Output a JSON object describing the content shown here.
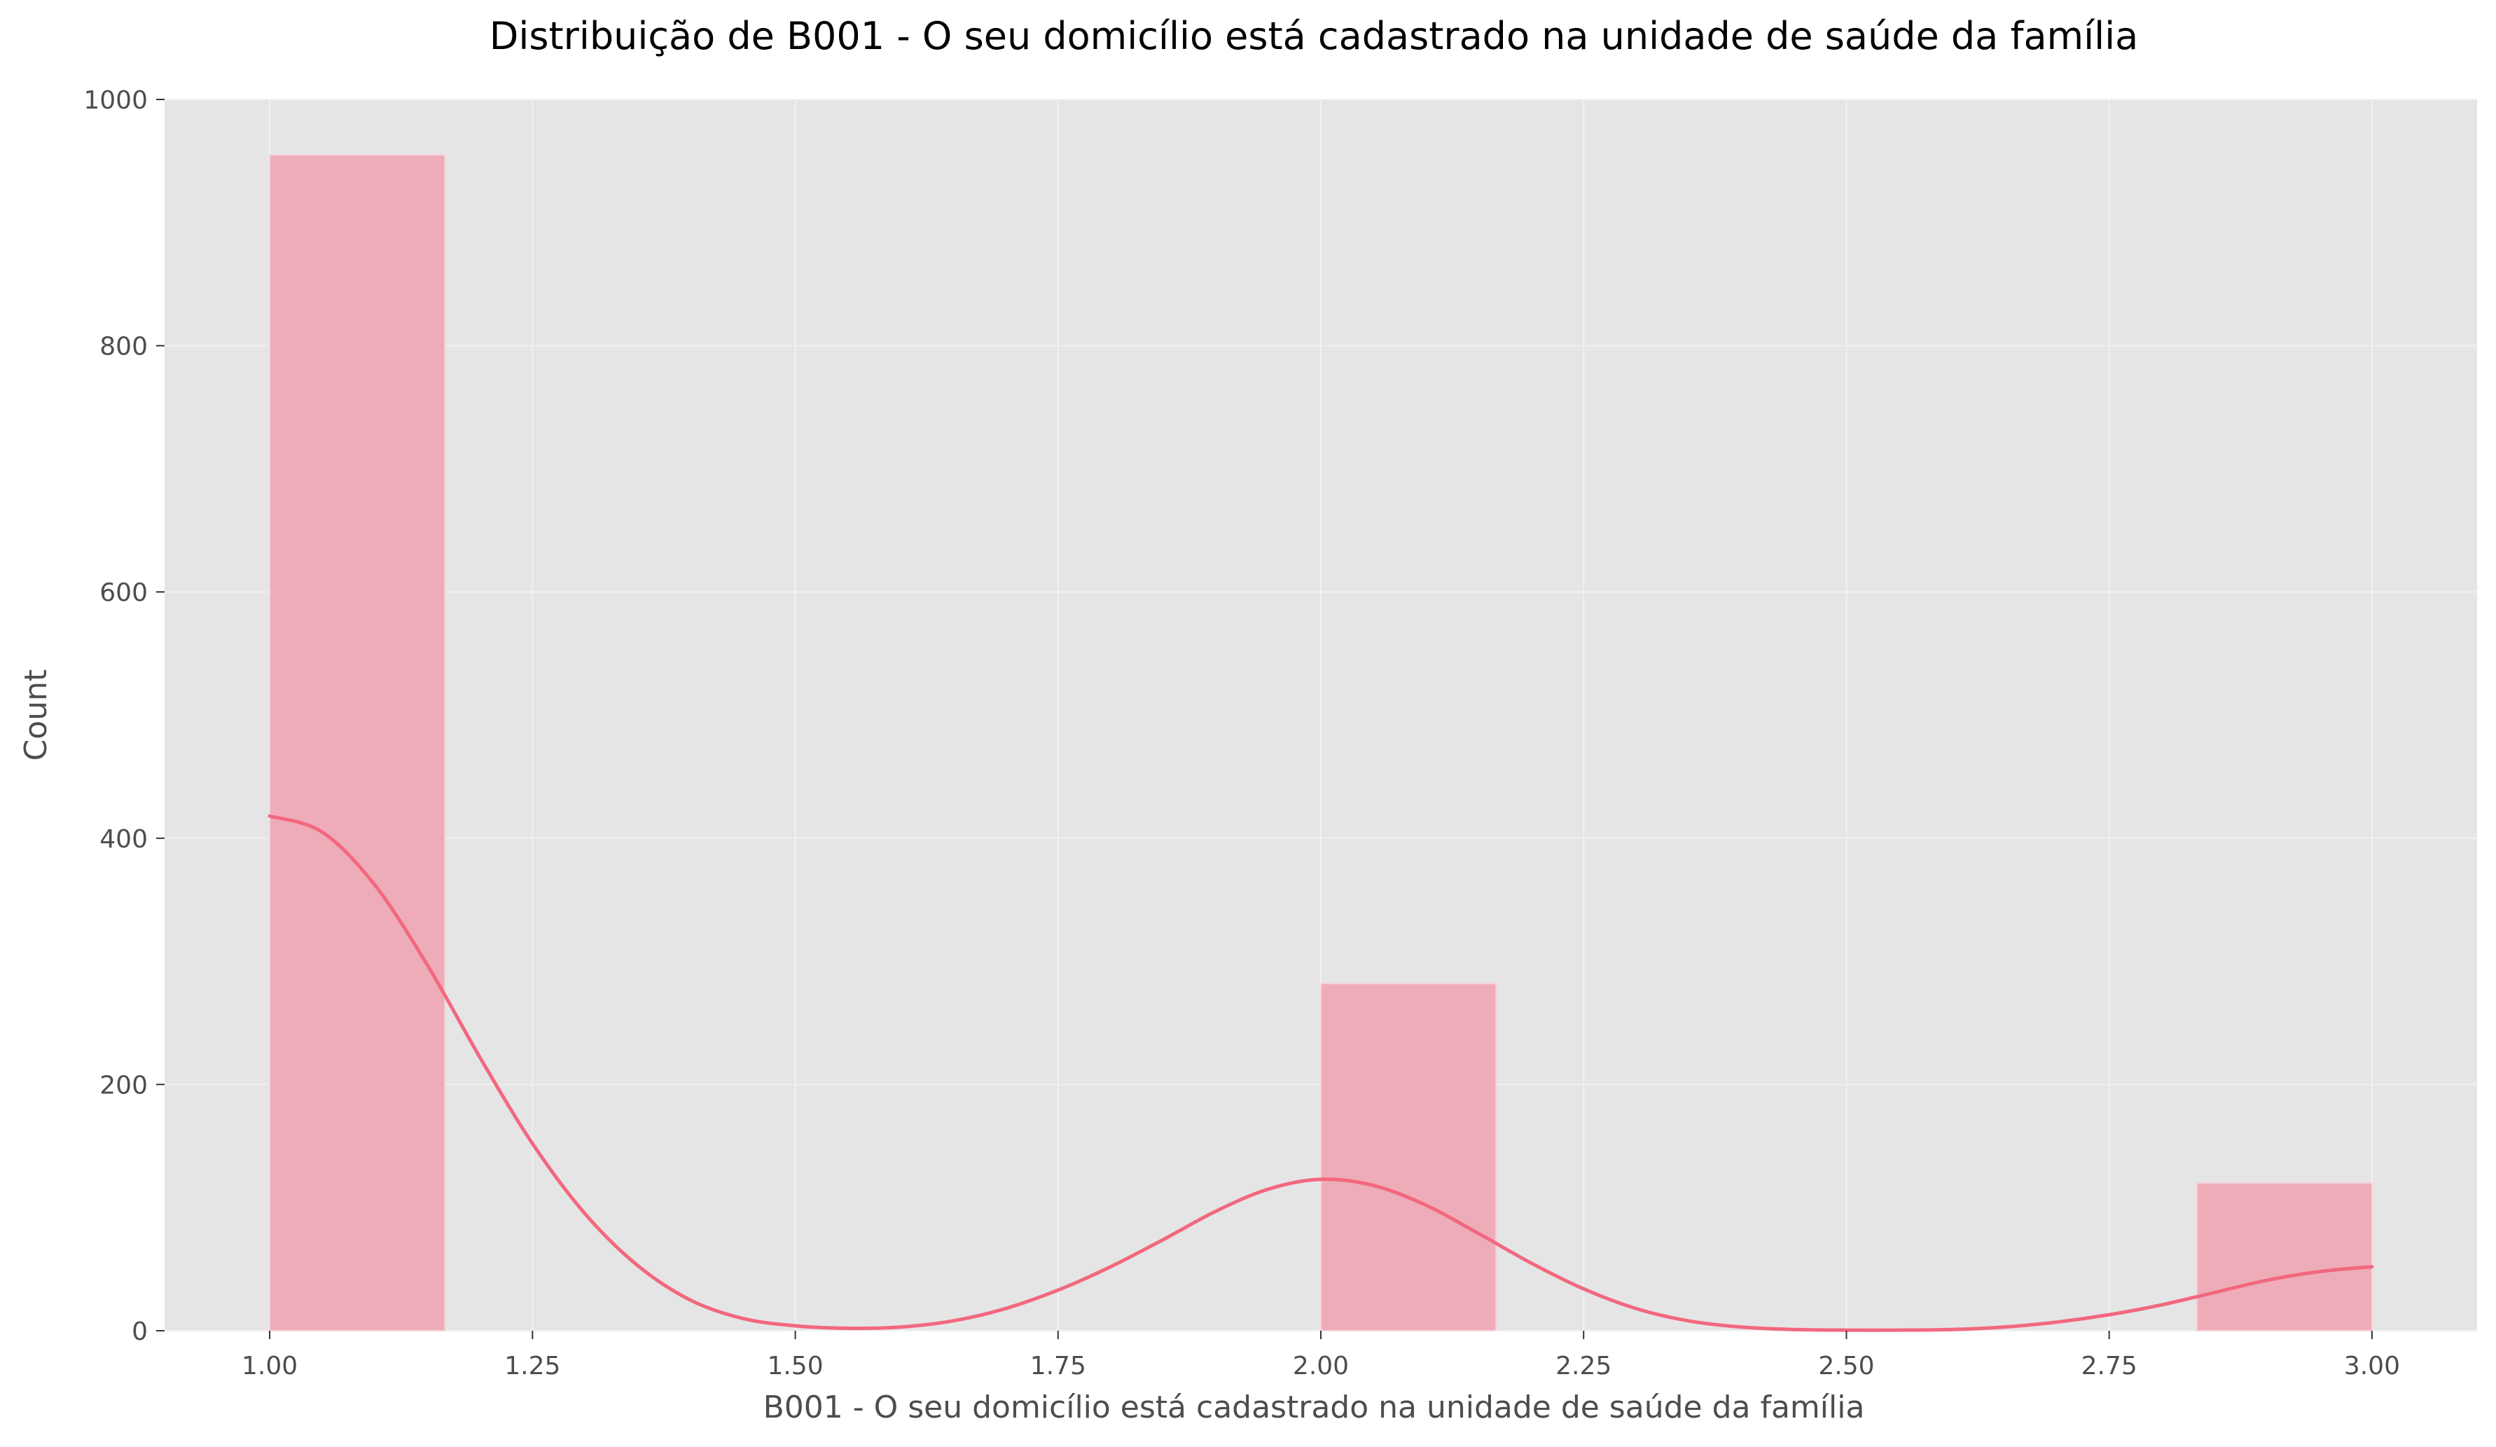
{
  "chart_data": {
    "type": "bar",
    "subtype": "histogram-with-kde",
    "title": "Distribuição de B001 - O seu domicílio está cadastrado na unidade de saúde da família",
    "xlabel": "B001 - O seu domicílio está cadastrado na unidade de saúde da família",
    "ylabel": "Count",
    "xlim": [
      0.9,
      3.1
    ],
    "ylim": [
      0,
      1000
    ],
    "xticks": [
      1.0,
      1.25,
      1.5,
      1.75,
      2.0,
      2.25,
      2.5,
      2.75,
      3.0
    ],
    "xtick_labels": [
      "1.00",
      "1.25",
      "1.50",
      "1.75",
      "2.00",
      "2.25",
      "2.50",
      "2.75",
      "3.00"
    ],
    "yticks": [
      0,
      200,
      400,
      600,
      800,
      1000
    ],
    "ytick_labels": [
      "0",
      "200",
      "400",
      "600",
      "800",
      "1000"
    ],
    "grid": true,
    "bins": [
      {
        "x0": 1.0,
        "x1": 1.1667,
        "count": 955
      },
      {
        "x0": 2.0,
        "x1": 2.1667,
        "count": 282
      },
      {
        "x0": 2.8333,
        "x1": 3.0,
        "count": 120
      }
    ],
    "kde": {
      "x": [
        1.0,
        1.05,
        1.1,
        1.15,
        1.2,
        1.25,
        1.3,
        1.35,
        1.4,
        1.45,
        1.5,
        1.55,
        1.6,
        1.65,
        1.7,
        1.75,
        1.8,
        1.85,
        1.9,
        1.95,
        2.0,
        2.05,
        2.1,
        2.15,
        2.2,
        2.25,
        2.3,
        2.35,
        2.4,
        2.45,
        2.5,
        2.55,
        2.6,
        2.65,
        2.7,
        2.75,
        2.8,
        2.85,
        2.9,
        2.95,
        3.0
      ],
      "y": [
        418,
        405,
        362,
        297,
        222,
        152,
        95,
        53,
        25,
        10,
        4,
        2,
        3,
        8,
        18,
        33,
        52,
        74,
        97,
        115,
        123,
        118,
        102,
        79,
        55,
        34,
        18,
        8,
        3,
        1,
        0.5,
        0.5,
        1,
        3,
        7,
        13,
        21,
        31,
        41,
        48,
        52
      ]
    },
    "colors": {
      "bar_fill": "#eeacb9",
      "bar_stroke": "#f6d4db",
      "kde_line": "#f2687e",
      "plot_bg": "#e5e5e5",
      "grid": "#f1f1f1",
      "tick_text": "#4d4d4d",
      "label_text": "#4d4d4d",
      "title_text": "#000000"
    }
  }
}
